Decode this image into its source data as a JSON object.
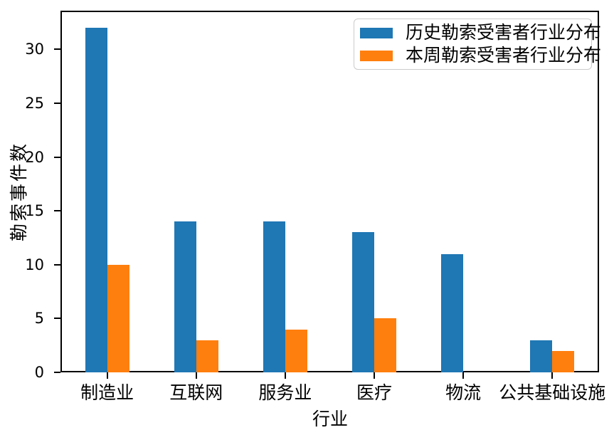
{
  "chart_data": {
    "type": "bar",
    "title": "",
    "categories": [
      "制造业",
      "互联网",
      "服务业",
      "医疗",
      "物流",
      "公共基础设施"
    ],
    "series": [
      {
        "name": "历史勒索受害者行业分布",
        "color": "#1f77b4",
        "values": [
          32,
          14,
          14,
          13,
          11,
          3
        ]
      },
      {
        "name": "本周勒索受害者行业分布",
        "color": "#ff7f0e",
        "values": [
          10,
          3,
          4,
          5,
          0,
          2
        ]
      }
    ],
    "xlabel": "行业",
    "ylabel": "勒索事件数",
    "yticks": [
      0,
      5,
      10,
      15,
      20,
      25,
      30
    ],
    "ylim": [
      0,
      33.6
    ],
    "xlim": [
      -0.525,
      5.525
    ],
    "grid": false,
    "legend_position": "upper right"
  },
  "colors": {
    "axis": "#000000",
    "background": "#ffffff",
    "legend_border": "#cccccc",
    "series_blue": "#1f77b4",
    "series_orange": "#ff7f0e"
  }
}
